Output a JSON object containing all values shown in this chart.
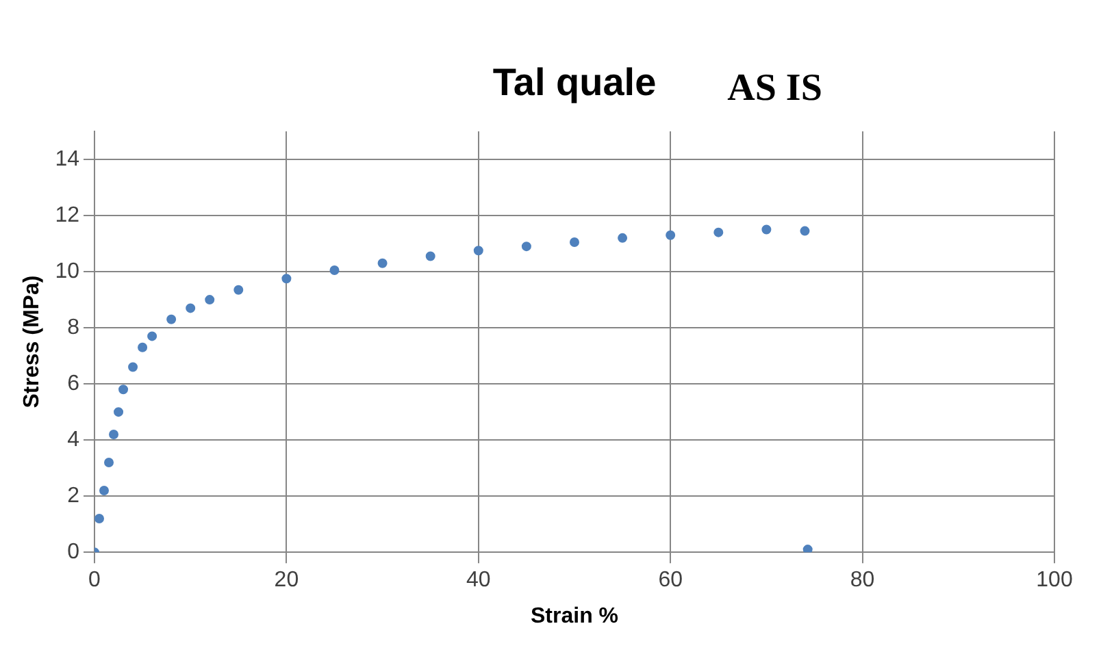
{
  "chart_data": {
    "type": "scatter",
    "title": "Tal quale",
    "annotations": [
      "AS IS"
    ],
    "xlabel": "Strain %",
    "ylabel": "Stress (MPa)",
    "x": [
      0,
      0.5,
      1,
      1.5,
      2,
      2.5,
      3,
      4,
      5,
      6,
      8,
      10,
      12,
      15,
      20,
      25,
      30,
      35,
      40,
      45,
      50,
      55,
      60,
      65,
      70,
      74,
      74.3
    ],
    "series": [
      {
        "color": "#4f81bd",
        "values": [
          0,
          1.2,
          2.2,
          3.2,
          4.2,
          5.0,
          5.8,
          6.6,
          7.3,
          7.7,
          8.3,
          8.7,
          9.0,
          9.35,
          9.75,
          10.05,
          10.3,
          10.55,
          10.75,
          10.9,
          11.05,
          11.2,
          11.3,
          11.4,
          11.5,
          11.45,
          0.1
        ]
      }
    ],
    "xlim": [
      0,
      100
    ],
    "xticks": [
      0,
      20,
      40,
      60,
      80,
      100
    ],
    "ylim": [
      0,
      15
    ],
    "yticks": [
      0,
      2,
      4,
      6,
      8,
      10,
      12,
      14
    ],
    "grid": true,
    "marker": "circle"
  }
}
